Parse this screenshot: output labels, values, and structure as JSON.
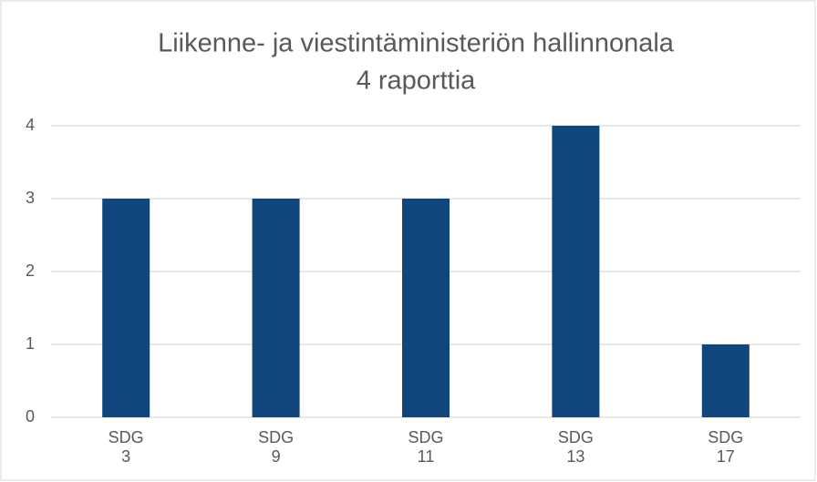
{
  "chart_data": {
    "type": "bar",
    "title": "Liikenne- ja viestintäministeriön hallinnonala",
    "subtitle": "4 raporttia",
    "categories": [
      "SDG 3",
      "SDG 9",
      "SDG 11",
      "SDG 13",
      "SDG 17"
    ],
    "values": [
      3,
      3,
      3,
      4,
      1
    ],
    "color": "#10467b",
    "ylim": [
      0,
      4
    ],
    "yticks": [
      0,
      1,
      2,
      3,
      4
    ],
    "grid": true
  }
}
